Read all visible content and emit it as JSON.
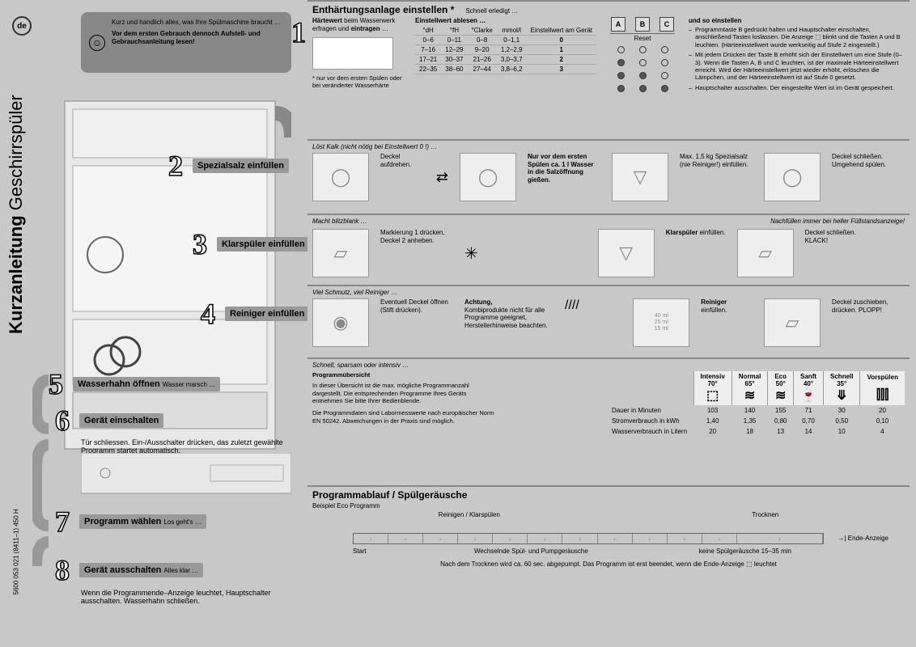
{
  "lang": "de",
  "title_bold": "Kurzanleitung",
  "title_rest": "Geschirrspüler",
  "docnum": "5600 053 021 (8411–1)  450 H",
  "intro": {
    "line1": "Kurz und handlich alles, was Ihre Spülmaschine braucht …",
    "line2": "Vor dem ersten Gebrauch dennoch Aufstell- und Gebrauchsanleitung lesen!"
  },
  "s1": {
    "title": "Enthärtungsanlage einstellen *",
    "tag": "Schnell erledigt …",
    "left_label1": "Härtewert beim Wasserwerk erfragen und eintragen …",
    "left_note": "* nur vor dem ersten Spülen oder bei veränderter Wasserhärte",
    "col_head": "Einstellwert ablesen …",
    "cols": [
      "°dH",
      "°fH",
      "°Clarke",
      "mmol/l",
      "Einstellwert am Gerät"
    ],
    "rows": [
      [
        "0–6",
        "0–11",
        "0–8",
        "0–1,1",
        "0"
      ],
      [
        "7–16",
        "12–29",
        "9–20",
        "1,2–2,9",
        "1"
      ],
      [
        "17–21",
        "30–37",
        "21–26",
        "3,0–3,7",
        "2"
      ],
      [
        "22–35",
        "38–60",
        "27–44",
        "3,8–6,2",
        "3"
      ]
    ],
    "abc": [
      "A",
      "B",
      "C"
    ],
    "reset": "Reset",
    "dots": [
      [
        0,
        0,
        0
      ],
      [
        1,
        0,
        0
      ],
      [
        1,
        1,
        0
      ],
      [
        1,
        1,
        1
      ]
    ],
    "right_head": "und so einstellen",
    "right_items": [
      "Programmtaste B gedrückt halten und Hauptschalter einschalten, anschließend Tasten loslassen. Die Anzeige ⬚ blinkt und die Tasten A und B leuchten. (Härteeinstellwert wurde werkseitig auf Stufe 2 eingestellt.)",
      "Mit jedem Drücken der Taste B erhöht sich der Einstellwert um eine Stufe (0–3). Wenn die Tasten A, B und C leuchten, ist der maximale Härteeinstellwert erreicht. Wird der Härteeinstellwert jetzt wieder erhöht, erlöschen die Lämpchen, und der Härteeinstellwert ist auf Stufe 0 gesetzt.",
      "Hauptschalter ausschalten. Der eingestellte Wert ist im Gerät gespeichert."
    ]
  },
  "s2": {
    "title": "Spezialsalz einfüllen",
    "tag": "Löst Kalk (nicht nötig bei Einstellwert 0 !) …",
    "caps": [
      "Deckel aufdrehen.",
      "Nur vor dem ersten Spülen ca. 1 l Wasser in die Salzöffnung gießen.",
      "Max. 1,5 kg Spezialsalz (nie Reiniger!) einfüllen.",
      "Deckel schließen. Umgehend spülen."
    ]
  },
  "s3": {
    "title": "Klarspüler einfüllen",
    "tag": "Macht blitzblank …",
    "tag2": "Nachfüllen immer bei heller Füllstandsanzeige!",
    "caps": [
      "Markierung 1 drücken, Deckel 2 anheben.",
      "Klarspüler einfüllen.",
      "Deckel schließen. KLACK!"
    ]
  },
  "s4": {
    "title": "Reiniger einfüllen",
    "tag": "Viel Schmutz, viel Reiniger …",
    "caps": [
      "Eventuell Deckel öffnen (Stift drücken).",
      "Achtung, Kombiprodukte nicht für alle Programme geeignet, Herstellerhinweise beachten.",
      "Reiniger einfüllen.",
      "Deckel zuschieben, drücken. PLOPP!"
    ],
    "marks": "40 ml\n25 ml\n15 ml"
  },
  "s5": {
    "title": "Wasserhahn öffnen",
    "tag": "Wasser marsch …"
  },
  "s6": {
    "title": "Gerät einschalten",
    "tag": "Schnell, sparsam oder intensiv …",
    "note": "Tür schliessen. Ein-/Ausschalter drücken, das zuletzt gewählte Programm startet automatisch.",
    "prog_head": "Programmübersicht",
    "prog_text1": "In dieser Übersicht ist die max. mögliche Programmanzahl dargestellt. Die entsprechenden Programme Ihres Geräts entnehmen Sie bitte Ihrer Bedienblende.",
    "prog_text2": "Die Programmdaten sind Labormesswerte nach europäischer Norm EN 50242. Abweichungen in der Praxis sind möglich.",
    "prog_cols": [
      {
        "name": "Intensiv",
        "temp": "70°",
        "icon": "⬚"
      },
      {
        "name": "Normal",
        "temp": "65°",
        "icon": "≋"
      },
      {
        "name": "Eco",
        "temp": "50°",
        "icon": "≋"
      },
      {
        "name": "Sanft",
        "temp": "40°",
        "icon": "🍷"
      },
      {
        "name": "Schnell",
        "temp": "35°",
        "icon": "⤋"
      },
      {
        "name": "Vorspülen",
        "temp": "",
        "icon": "⫿⫿⫿"
      }
    ],
    "prog_rows": [
      {
        "label": "Dauer in Minuten",
        "vals": [
          "103",
          "140",
          "155",
          "71",
          "30",
          "20"
        ]
      },
      {
        "label": "Stromverbrauch in kWh",
        "vals": [
          "1,40",
          "1,35",
          "0,80",
          "0,70",
          "0,50",
          "0,10"
        ]
      },
      {
        "label": "Wasserverbrauch in Litern",
        "vals": [
          "20",
          "18",
          "13",
          "14",
          "10",
          "4"
        ]
      }
    ]
  },
  "s7": {
    "title": "Programm wählen",
    "tag": "Los geht's …"
  },
  "s8": {
    "title": "Gerät ausschalten",
    "tag": "Alles klar …",
    "note": "Wenn die Programmende–Anzeige leuchtet, Hauptschalter ausschalten. Wasserhahn schließen."
  },
  "ablauf": {
    "title": "Programmablauf / Spülgeräusche",
    "sub": "Beispiel Eco Programm",
    "phase1": "Reinigen / Klarspülen",
    "phase2": "Trocknen",
    "start": "Start",
    "mid": "Wechselnde Spül- und Pumpgeräusche",
    "quiet": "keine Spülgeräusche 15–35 min",
    "end": "Ende-Anzeige",
    "footer": "Nach dem Trocknen wird ca. 60 sec. abgepumpt. Das Programm ist erst beendet, wenn die Ende-Anzeige ⬚ leuchtet"
  }
}
